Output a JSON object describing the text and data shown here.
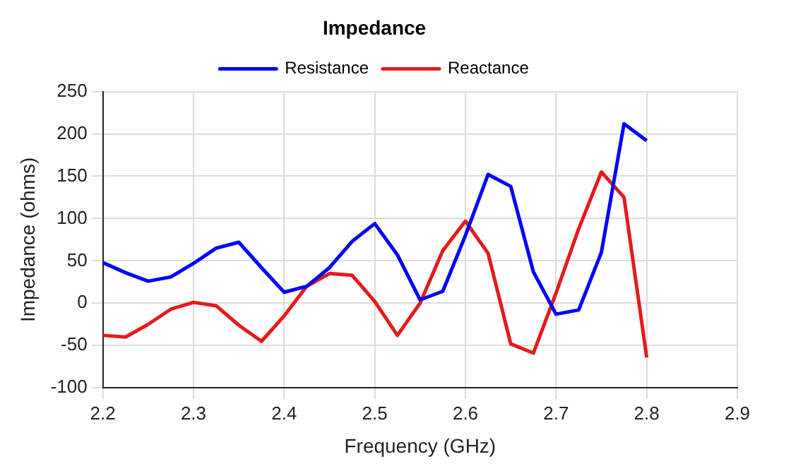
{
  "chart_data": {
    "type": "line",
    "title": "Impedance",
    "xlabel": "Frequency (GHz)",
    "ylabel": "Impedance (ohms)",
    "x": [
      2.2,
      2.225,
      2.25,
      2.275,
      2.3,
      2.325,
      2.35,
      2.375,
      2.4,
      2.425,
      2.45,
      2.475,
      2.5,
      2.525,
      2.55,
      2.575,
      2.6,
      2.625,
      2.65,
      2.675,
      2.7,
      2.725,
      2.75,
      2.775,
      2.8
    ],
    "series": [
      {
        "name": "Resistance",
        "color": "#0000ff",
        "values": [
          48,
          36,
          26,
          31,
          47,
          65,
          72,
          42,
          13,
          20,
          42,
          73,
          94,
          57,
          4,
          14,
          80,
          152,
          138,
          37,
          -13,
          -8,
          60,
          212,
          192
        ]
      },
      {
        "name": "Reactance",
        "color": "#e41a1c",
        "values": [
          -38,
          -40,
          -25,
          -7,
          1,
          -3,
          -26,
          -45,
          -15,
          20,
          35,
          33,
          2,
          -38,
          0,
          62,
          97,
          59,
          -48,
          -59,
          12,
          88,
          155,
          125,
          -64
        ]
      }
    ],
    "xlim": [
      2.2,
      2.9
    ],
    "xticks": [
      2.2,
      2.3,
      2.4,
      2.5,
      2.6,
      2.7,
      2.8,
      2.9
    ],
    "ylim": [
      -100,
      250
    ],
    "yticks": [
      -100,
      -50,
      0,
      50,
      100,
      150,
      200,
      250
    ],
    "grid": true,
    "legend": "top",
    "line_style": "solid",
    "marker": "none"
  }
}
